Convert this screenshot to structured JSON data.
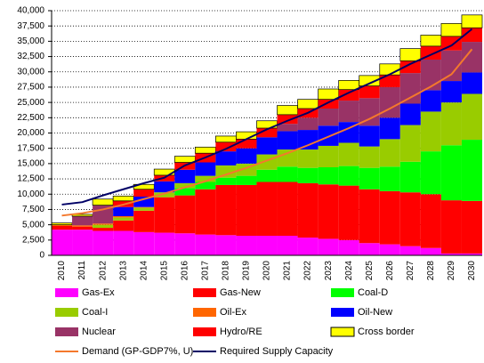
{
  "chart_data": {
    "type": "stacked_bar",
    "categories": [
      "2010",
      "2011",
      "2012",
      "2013",
      "2014",
      "2015",
      "2016",
      "2017",
      "2018",
      "2019",
      "2020",
      "2021",
      "2022",
      "2023",
      "2024",
      "2025",
      "2026",
      "2027",
      "2028",
      "2029",
      "2030"
    ],
    "series": [
      {
        "name": "Gas-Ex",
        "color": "#ff00ff",
        "values": [
          4200,
          4200,
          4000,
          4000,
          3800,
          3700,
          3600,
          3400,
          3300,
          3200,
          3200,
          3200,
          2900,
          2700,
          2500,
          2000,
          1800,
          1500,
          1200,
          300,
          300
        ]
      },
      {
        "name": "Gas-New",
        "color": "#ff0000",
        "values": [
          600,
          500,
          500,
          1700,
          3500,
          5800,
          6200,
          7400,
          8200,
          8300,
          8800,
          8800,
          8900,
          8900,
          8900,
          8800,
          8700,
          8800,
          8800,
          8700,
          8600
        ]
      },
      {
        "name": "Coal-D",
        "color": "#00ff00",
        "values": [
          0,
          0,
          0,
          0,
          0,
          0,
          1200,
          1200,
          1200,
          1500,
          2000,
          2500,
          2500,
          2800,
          3200,
          3500,
          4000,
          5000,
          7000,
          9000,
          10000
        ]
      },
      {
        "name": "Coal-I",
        "color": "#99cc00",
        "values": [
          0,
          0,
          500,
          500,
          500,
          800,
          800,
          1000,
          2000,
          2000,
          2500,
          2800,
          3000,
          3500,
          3800,
          3500,
          4500,
          6000,
          6500,
          7000,
          7500
        ]
      },
      {
        "name": "Oil-Ex",
        "color": "#ff6600",
        "values": [
          200,
          200,
          200,
          200,
          100,
          0,
          0,
          0,
          0,
          0,
          0,
          0,
          0,
          0,
          0,
          0,
          0,
          0,
          0,
          0,
          0
        ]
      },
      {
        "name": "Oil-New",
        "color": "#0000ff",
        "values": [
          0,
          0,
          0,
          1500,
          1700,
          1800,
          2200,
          2200,
          2300,
          2500,
          2800,
          3000,
          3200,
          3300,
          3400,
          3400,
          3500,
          3500,
          3500,
          3500,
          3500
        ]
      },
      {
        "name": "Nuclear",
        "color": "#993366",
        "values": [
          0,
          1500,
          3000,
          0,
          0,
          0,
          0,
          0,
          0,
          0,
          0,
          1200,
          2000,
          2800,
          3500,
          4500,
          5000,
          5000,
          5000,
          5000,
          5000
        ]
      },
      {
        "name": "Hydro/RE",
        "color": "#ff0000",
        "values": [
          0,
          0,
          0,
          1000,
          1200,
          1000,
          1200,
          1500,
          1500,
          1500,
          1500,
          1500,
          1500,
          1500,
          1800,
          2000,
          2000,
          2000,
          2200,
          2300,
          2300
        ]
      },
      {
        "name": "Cross border",
        "color": "#ffff00",
        "values": [
          300,
          300,
          1000,
          800,
          800,
          1000,
          1000,
          1000,
          1000,
          1200,
          1200,
          1500,
          1500,
          1700,
          1500,
          1700,
          1800,
          2000,
          1800,
          2100,
          2100
        ]
      }
    ],
    "lines": [
      {
        "name": "Demand (GP-GDP7%, U)",
        "color": "#f4782c",
        "values": [
          6500,
          6900,
          7500,
          8300,
          9200,
          10100,
          11100,
          12100,
          13200,
          14300,
          15500,
          16700,
          18000,
          19400,
          20800,
          22300,
          24000,
          25800,
          27600,
          29600,
          33700
        ]
      },
      {
        "name": "Required Supply Capacity",
        "color": "#000066",
        "values": [
          8300,
          8700,
          9800,
          10800,
          11800,
          12700,
          14700,
          16000,
          17400,
          19000,
          20600,
          22000,
          23300,
          25000,
          26600,
          28100,
          29600,
          31300,
          32800,
          34300,
          37000
        ]
      }
    ],
    "ylim": [
      0,
      40000
    ],
    "yticks": [
      0,
      {
        "value": 2500,
        "label": "2,500"
      },
      {
        "value": 5000,
        "label": "5,000"
      },
      {
        "value": 7500,
        "label": "7,500"
      },
      {
        "value": 10000,
        "label": "10,000"
      },
      {
        "value": 12500,
        "label": "12,500"
      },
      {
        "value": 15000,
        "label": "15,000"
      },
      {
        "value": 17500,
        "label": "17,500"
      },
      {
        "value": 20000,
        "label": "20,000"
      },
      {
        "value": 22500,
        "label": "22,500"
      },
      {
        "value": 25000,
        "label": "25,000"
      },
      {
        "value": 27500,
        "label": "27,500"
      },
      {
        "value": 30000,
        "label": "30,000"
      },
      {
        "value": 32500,
        "label": "32,500"
      },
      {
        "value": 35000,
        "label": "35,000"
      },
      {
        "value": 37500,
        "label": "37,500"
      },
      {
        "value": 40000,
        "label": "40,000"
      }
    ],
    "grid": true
  }
}
